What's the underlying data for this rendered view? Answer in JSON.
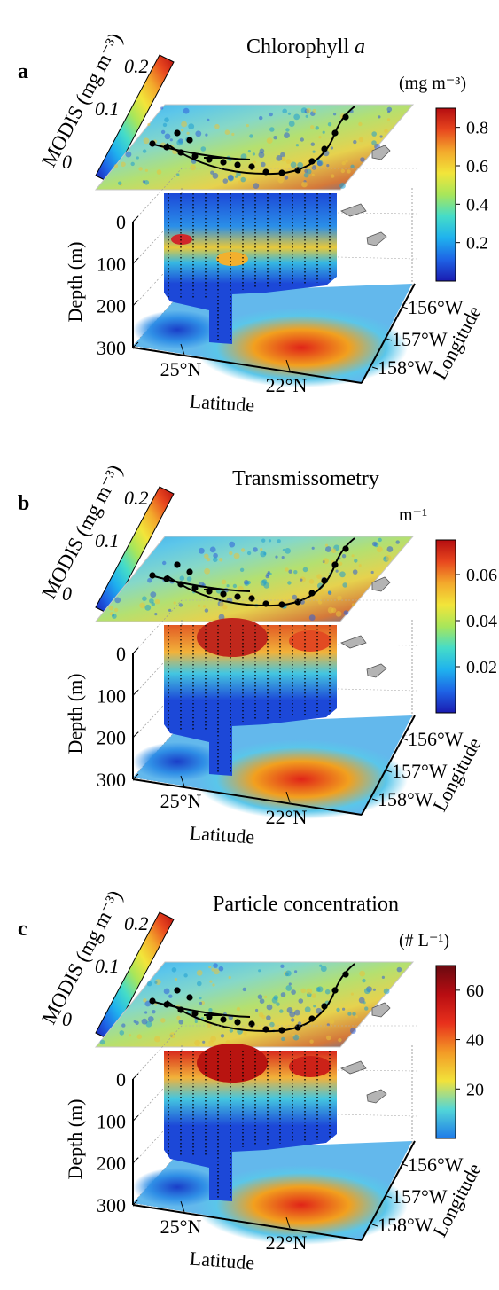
{
  "colors": {
    "modis_ramp": [
      "#1a1ab0",
      "#1e64e6",
      "#1fb2ee",
      "#45dcc8",
      "#a8e65a",
      "#f2e53a",
      "#f3a92c",
      "#e8471e",
      "#b50d10"
    ],
    "ocean_surface": [
      "#3aa8e8",
      "#5cc6ea",
      "#86d8c8",
      "#b4e070",
      "#e6d24e",
      "#d4783a",
      "#1f68d4"
    ],
    "curtain_bg": "#1c48d8",
    "curtain_band_chl": "#e8c83a",
    "curtain_band_trans": "#e25a24",
    "curtain_band_part": "#d8281c",
    "land": "#b4b4b4",
    "track": "#000000",
    "bottom_hot": "#e02418",
    "bottom_warm": "#f2a01e",
    "bottom_cool": "#5ac6ea"
  },
  "panels": [
    {
      "letter": "a",
      "title": "Chlorophyll a",
      "title_main": "Chlorophyll ",
      "title_italic": "a",
      "modis": {
        "label": "MODIS (mg m⁻³)",
        "ticks": [
          "0.2",
          "0.1",
          "0"
        ]
      },
      "unit": "(mg m⁻³)",
      "colorbar_ticks": [
        "0.8",
        "0.6",
        "0.4",
        "0.2"
      ],
      "depth_label": "Depth (m)",
      "depth_ticks": [
        "0",
        "100",
        "200",
        "300"
      ],
      "lat_label": "Latitude",
      "lat_ticks": [
        "25°N",
        "22°N"
      ],
      "lon_label": "Longitude",
      "lon_ticks": [
        "156°W",
        "157°W",
        "158°W"
      ]
    },
    {
      "letter": "b",
      "title": "Transmissometry",
      "title_main": "Transmissometry",
      "title_italic": "",
      "modis": {
        "label": "MODIS (mg m⁻³)",
        "ticks": [
          "0.2",
          "0.1",
          "0"
        ]
      },
      "unit": "m⁻¹",
      "colorbar_ticks": [
        "0.06",
        "0.04",
        "0.02"
      ],
      "depth_label": "Depth (m)",
      "depth_ticks": [
        "0",
        "100",
        "200",
        "300"
      ],
      "lat_label": "Latitude",
      "lat_ticks": [
        "25°N",
        "22°N"
      ],
      "lon_label": "Longitude",
      "lon_ticks": [
        "156°W",
        "157°W",
        "158°W"
      ]
    },
    {
      "letter": "c",
      "title": "Particle concentration",
      "title_main": "Particle concentration",
      "title_italic": "",
      "modis": {
        "label": "MODIS (mg m⁻³)",
        "ticks": [
          "0.2",
          "0.1",
          "0"
        ]
      },
      "unit": "(# L⁻¹)",
      "colorbar_ticks": [
        "60",
        "40",
        "20"
      ],
      "depth_label": "Depth (m)",
      "depth_ticks": [
        "0",
        "100",
        "200",
        "300"
      ],
      "lat_label": "Latitude",
      "lat_ticks": [
        "25°N",
        "22°N"
      ],
      "lon_label": "Longitude",
      "lon_ticks": [
        "156°W",
        "157°W",
        "158°W"
      ]
    }
  ],
  "chart_data": [
    {
      "type": "heatmap",
      "title": "Chlorophyll a",
      "unit": "(mg m⁻³)",
      "colorbar_ticks": [
        0.8,
        0.6,
        0.4,
        0.2
      ],
      "colorbar_range": [
        0,
        0.9
      ],
      "depth_ticks": [
        0,
        100,
        200,
        300
      ],
      "ylabel": "Depth (m)",
      "xlabel": "Latitude",
      "lat_ticks": [
        "25°N",
        "22°N"
      ],
      "zlabel": "Longitude",
      "lon_ticks": [
        "156°W",
        "157°W",
        "158°W"
      ],
      "modis_label": "MODIS (mg m⁻³)",
      "modis_range": [
        0,
        0.2
      ],
      "modis_ticks": [
        0,
        0.1,
        0.2
      ]
    },
    {
      "type": "heatmap",
      "title": "Transmissometry",
      "unit": "m⁻¹",
      "colorbar_ticks": [
        0.06,
        0.04,
        0.02
      ],
      "colorbar_range": [
        0,
        0.075
      ],
      "depth_ticks": [
        0,
        100,
        200,
        300
      ],
      "ylabel": "Depth (m)",
      "xlabel": "Latitude",
      "lat_ticks": [
        "25°N",
        "22°N"
      ],
      "zlabel": "Longitude",
      "lon_ticks": [
        "156°W",
        "157°W",
        "158°W"
      ],
      "modis_label": "MODIS (mg m⁻³)",
      "modis_range": [
        0,
        0.2
      ],
      "modis_ticks": [
        0,
        0.1,
        0.2
      ]
    },
    {
      "type": "heatmap",
      "title": "Particle concentration",
      "unit": "(# L⁻¹)",
      "colorbar_ticks": [
        60,
        40,
        20
      ],
      "colorbar_range": [
        0,
        70
      ],
      "depth_ticks": [
        0,
        100,
        200,
        300
      ],
      "ylabel": "Depth (m)",
      "xlabel": "Latitude",
      "lat_ticks": [
        "25°N",
        "22°N"
      ],
      "zlabel": "Longitude",
      "lon_ticks": [
        "156°W",
        "157°W",
        "158°W"
      ],
      "modis_label": "MODIS (mg m⁻³)",
      "modis_range": [
        0,
        0.2
      ],
      "modis_ticks": [
        0,
        0.1,
        0.2
      ]
    }
  ]
}
